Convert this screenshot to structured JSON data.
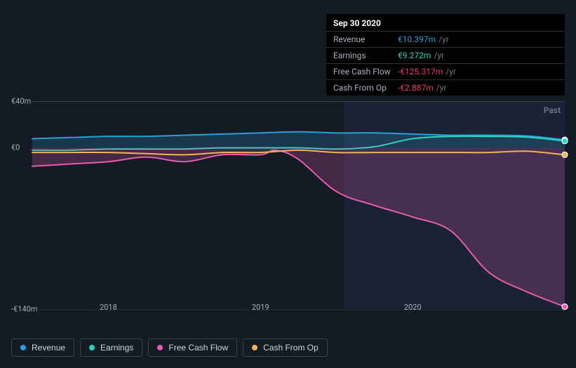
{
  "tooltip": {
    "date": "Sep 30 2020",
    "rows": [
      {
        "label": "Revenue",
        "value": "€10.397m",
        "unit": "/yr",
        "color": "#2a9fd6"
      },
      {
        "label": "Earnings",
        "value": "€9.272m",
        "unit": "/yr",
        "color": "#2dd4bf"
      },
      {
        "label": "Free Cash Flow",
        "value": "-€125.317m",
        "unit": "/yr",
        "color": "#ef3a6d"
      },
      {
        "label": "Cash From Op",
        "value": "-€2.887m",
        "unit": "/yr",
        "color": "#ef3a6d"
      }
    ]
  },
  "chart": {
    "type": "line-area",
    "background_color": "#151b24",
    "grid_color": "#252c38",
    "axis_label_color": "#a8b0bd",
    "axis_fontsize": 11,
    "past_label": "Past",
    "x_range": [
      2017.5,
      2021.0
    ],
    "y_range": [
      -140,
      40
    ],
    "y_ticks": [
      {
        "v": 40,
        "label": "€40m"
      },
      {
        "v": 0,
        "label": "€0"
      },
      {
        "v": -140,
        "label": "-€140m"
      }
    ],
    "x_ticks": [
      {
        "v": 2018,
        "label": "2018"
      },
      {
        "v": 2019,
        "label": "2019"
      },
      {
        "v": 2020,
        "label": "2020"
      }
    ],
    "highlight_region": {
      "x_start": 2019.55,
      "x_end": 2021.0,
      "fill": "#1d2a44",
      "opacity": 0.55
    },
    "marker_x": 2020.75,
    "series": [
      {
        "name": "Revenue",
        "color": "#2a9fd6",
        "line_width": 2,
        "fill_opacity": 0.22,
        "fill_to_zero": true,
        "data": [
          [
            2017.5,
            8
          ],
          [
            2017.75,
            9
          ],
          [
            2018.0,
            10
          ],
          [
            2018.25,
            10
          ],
          [
            2018.5,
            11
          ],
          [
            2018.75,
            12
          ],
          [
            2019.0,
            13
          ],
          [
            2019.25,
            14
          ],
          [
            2019.5,
            13
          ],
          [
            2019.75,
            13
          ],
          [
            2020.0,
            12
          ],
          [
            2020.25,
            11
          ],
          [
            2020.5,
            11
          ],
          [
            2020.75,
            10.4
          ],
          [
            2021.0,
            7
          ]
        ]
      },
      {
        "name": "Earnings",
        "color": "#2dd4bf",
        "line_width": 2,
        "fill_opacity": 0.0,
        "fill_to_zero": false,
        "data": [
          [
            2017.5,
            -2
          ],
          [
            2017.75,
            -2
          ],
          [
            2018.0,
            -1
          ],
          [
            2018.25,
            -1
          ],
          [
            2018.5,
            -1
          ],
          [
            2018.75,
            0
          ],
          [
            2019.0,
            0
          ],
          [
            2019.25,
            0
          ],
          [
            2019.5,
            -1
          ],
          [
            2019.75,
            1
          ],
          [
            2020.0,
            8
          ],
          [
            2020.25,
            10
          ],
          [
            2020.5,
            10
          ],
          [
            2020.75,
            9.3
          ],
          [
            2021.0,
            6
          ]
        ]
      },
      {
        "name": "Free Cash Flow",
        "color": "#e85ab0",
        "line_width": 2,
        "fill_opacity": 0.22,
        "fill_to_zero": true,
        "data": [
          [
            2017.5,
            -16
          ],
          [
            2017.75,
            -14
          ],
          [
            2018.0,
            -12
          ],
          [
            2018.25,
            -8
          ],
          [
            2018.5,
            -12
          ],
          [
            2018.75,
            -6
          ],
          [
            2019.0,
            -6
          ],
          [
            2019.1,
            -2
          ],
          [
            2019.25,
            -10
          ],
          [
            2019.5,
            -38
          ],
          [
            2019.75,
            -50
          ],
          [
            2020.0,
            -60
          ],
          [
            2020.25,
            -72
          ],
          [
            2020.5,
            -108
          ],
          [
            2020.75,
            -125
          ],
          [
            2021.0,
            -138
          ]
        ]
      },
      {
        "name": "Cash From Op",
        "color": "#f0b35a",
        "line_width": 2,
        "fill_opacity": 0.0,
        "fill_to_zero": false,
        "data": [
          [
            2017.5,
            -4
          ],
          [
            2017.75,
            -4
          ],
          [
            2018.0,
            -4
          ],
          [
            2018.25,
            -5
          ],
          [
            2018.5,
            -6
          ],
          [
            2018.75,
            -4
          ],
          [
            2019.0,
            -4
          ],
          [
            2019.25,
            -2
          ],
          [
            2019.5,
            -4
          ],
          [
            2019.75,
            -4
          ],
          [
            2020.0,
            -4
          ],
          [
            2020.25,
            -4
          ],
          [
            2020.5,
            -4
          ],
          [
            2020.75,
            -2.9
          ],
          [
            2021.0,
            -6
          ]
        ]
      }
    ],
    "end_markers": [
      {
        "series": "Revenue",
        "x": 2021.0,
        "y": 7,
        "color": "#2a9fd6"
      },
      {
        "series": "Earnings",
        "x": 2021.0,
        "y": 6,
        "color": "#2dd4bf"
      },
      {
        "series": "Cash From Op",
        "x": 2021.0,
        "y": -6,
        "color": "#f0b35a"
      },
      {
        "series": "Free Cash Flow",
        "x": 2021.0,
        "y": -138,
        "color": "#e85ab0"
      }
    ]
  },
  "legend": {
    "items": [
      {
        "label": "Revenue",
        "color": "#2a9fd6"
      },
      {
        "label": "Earnings",
        "color": "#2dd4bf"
      },
      {
        "label": "Free Cash Flow",
        "color": "#e85ab0"
      },
      {
        "label": "Cash From Op",
        "color": "#f0b35a"
      }
    ]
  }
}
